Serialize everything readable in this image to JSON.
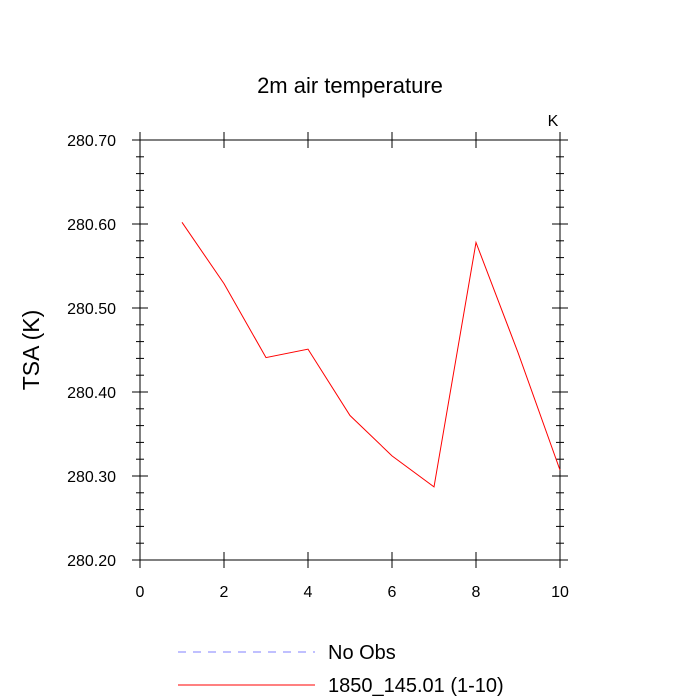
{
  "chart_data": {
    "type": "line",
    "title": "2m air temperature",
    "units_label": "K",
    "xlabel": "",
    "ylabel": "TSA  (K)",
    "xlim": [
      0,
      10
    ],
    "ylim": [
      280.2,
      280.7
    ],
    "x_ticks": [
      0,
      2,
      4,
      6,
      8,
      10
    ],
    "y_ticks": [
      280.2,
      280.3,
      280.4,
      280.5,
      280.6,
      280.7
    ],
    "y_tick_labels": [
      "280.20",
      "280.30",
      "280.40",
      "280.50",
      "280.60",
      "280.70"
    ],
    "grid": false,
    "legend_position": "bottom",
    "series": [
      {
        "name": "No Obs",
        "color": "#8080ff",
        "dash": true,
        "x": [],
        "y": []
      },
      {
        "name": "1850_145.01 (1-10)",
        "color": "#ff0000",
        "dash": false,
        "x": [
          1,
          2,
          3,
          4,
          5,
          6,
          7,
          8,
          9,
          10
        ],
        "y": [
          280.602,
          280.529,
          280.441,
          280.451,
          280.372,
          280.324,
          280.287,
          280.578,
          280.447,
          280.307
        ]
      }
    ]
  }
}
